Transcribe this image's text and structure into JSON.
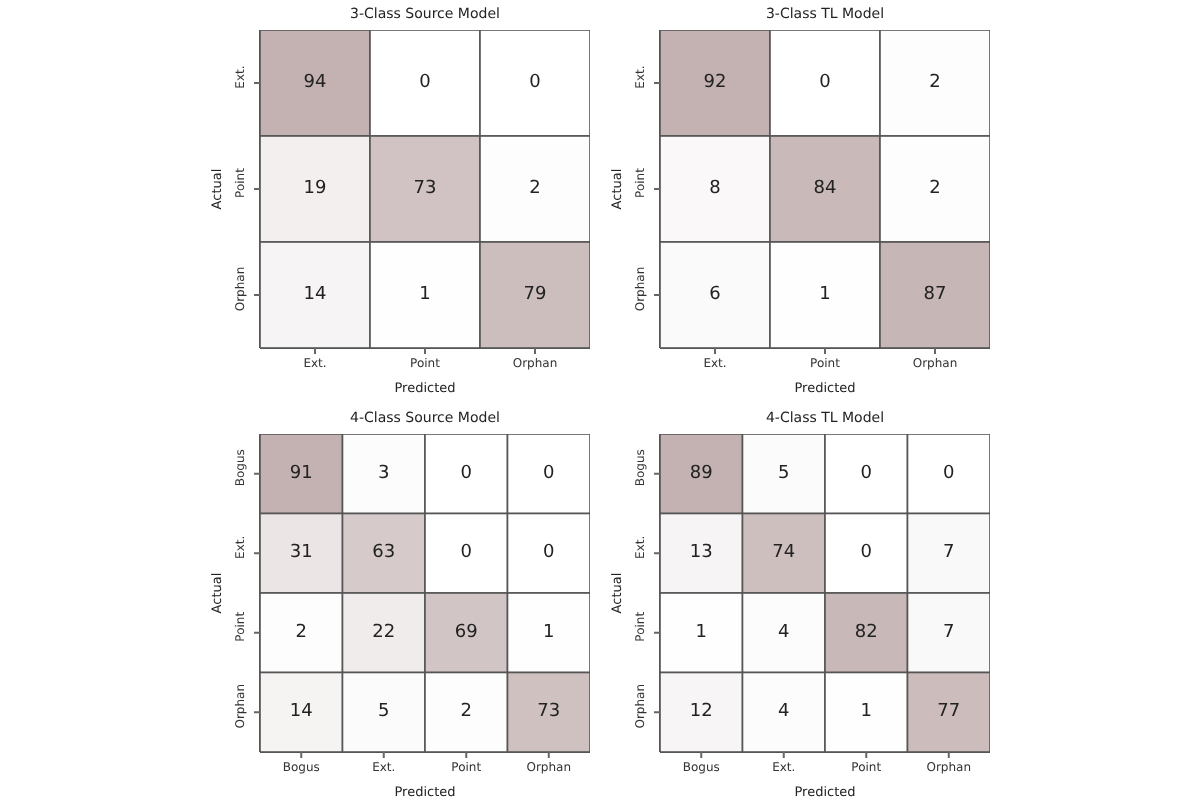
{
  "chart_data": [
    {
      "type": "heatmap",
      "title": "3-Class Source Model",
      "xlabel": "Predicted",
      "ylabel": "Actual",
      "categories": [
        "Ext.",
        "Point",
        "Orphan"
      ],
      "y_categories": [
        "Ext.",
        "Point",
        "Orphan"
      ],
      "cells": [
        [
          94,
          0,
          0
        ],
        [
          19,
          73,
          2
        ],
        [
          14,
          1,
          79
        ]
      ],
      "data_labels": true
    },
    {
      "type": "heatmap",
      "title": "3-Class TL Model",
      "xlabel": "Predicted",
      "ylabel": "Actual",
      "categories": [
        "Ext.",
        "Point",
        "Orphan"
      ],
      "y_categories": [
        "Ext.",
        "Point",
        "Orphan"
      ],
      "cells": [
        [
          92,
          0,
          2
        ],
        [
          8,
          84,
          2
        ],
        [
          6,
          1,
          87
        ]
      ],
      "data_labels": true
    },
    {
      "type": "heatmap",
      "title": "4-Class Source Model",
      "xlabel": "Predicted",
      "ylabel": "Actual",
      "categories": [
        "Bogus",
        "Ext.",
        "Point",
        "Orphan"
      ],
      "y_categories": [
        "Bogus",
        "Ext.",
        "Point",
        "Orphan"
      ],
      "cells": [
        [
          91,
          3,
          0,
          0
        ],
        [
          31,
          63,
          0,
          0
        ],
        [
          2,
          22,
          69,
          1
        ],
        [
          14,
          5,
          2,
          73
        ]
      ],
      "data_labels": true
    },
    {
      "type": "heatmap",
      "title": "4-Class TL Model",
      "xlabel": "Predicted",
      "ylabel": "Actual",
      "categories": [
        "Bogus",
        "Ext.",
        "Point",
        "Orphan"
      ],
      "y_categories": [
        "Bogus",
        "Ext.",
        "Point",
        "Orphan"
      ],
      "cells": [
        [
          89,
          5,
          0,
          0
        ],
        [
          13,
          74,
          0,
          7
        ],
        [
          1,
          4,
          82,
          7
        ],
        [
          12,
          4,
          1,
          77
        ]
      ],
      "data_labels": true
    }
  ]
}
